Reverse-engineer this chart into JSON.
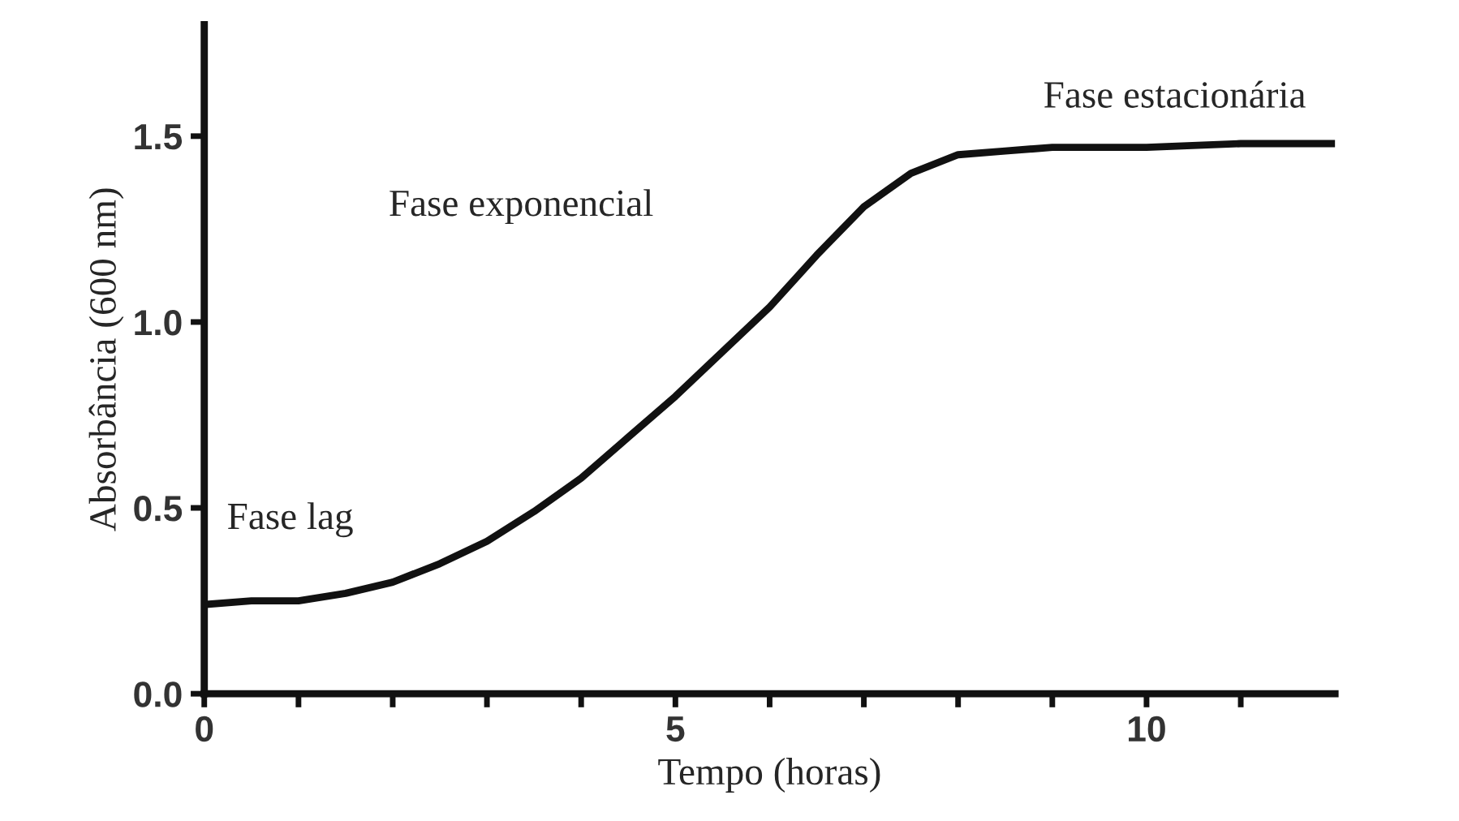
{
  "chart_data": {
    "type": "line",
    "xlabel": "Tempo (horas)",
    "ylabel": "Absorbância (600 nm)",
    "x": [
      0,
      0.5,
      1,
      1.5,
      2,
      2.5,
      3,
      3.5,
      4,
      4.5,
      5,
      5.5,
      6,
      6.5,
      7,
      7.5,
      8,
      8.5,
      9,
      10,
      11,
      12
    ],
    "series": [
      {
        "color": "#111111",
        "values": [
          0.24,
          0.25,
          0.25,
          0.27,
          0.3,
          0.35,
          0.41,
          0.49,
          0.58,
          0.69,
          0.8,
          0.92,
          1.04,
          1.18,
          1.31,
          1.4,
          1.45,
          1.46,
          1.47,
          1.47,
          1.48,
          1.48
        ]
      }
    ],
    "xlim": [
      0,
      12
    ],
    "ylim": [
      0,
      1.8
    ],
    "xticks": [
      0,
      {
        "value": 1,
        "label": null
      },
      {
        "value": 2,
        "label": null
      },
      {
        "value": 3,
        "label": null
      },
      {
        "value": 4,
        "label": null
      },
      5,
      {
        "value": 6,
        "label": null
      },
      {
        "value": 7,
        "label": null
      },
      {
        "value": 8,
        "label": null
      },
      {
        "value": 9,
        "label": null
      },
      10,
      {
        "value": 11,
        "label": null
      }
    ],
    "yticks": [
      {
        "value": 0,
        "label": "0.0"
      },
      {
        "value": 0.5,
        "label": "0.5"
      },
      {
        "value": 1.0,
        "label": "1.0"
      },
      {
        "value": 1.5,
        "label": "1.5"
      }
    ],
    "annotations": [
      "Fase lag",
      "Fase exponencial",
      "Fase estacionária"
    ],
    "grid": false,
    "legend": false,
    "marker": "none",
    "line_style": "solid"
  }
}
